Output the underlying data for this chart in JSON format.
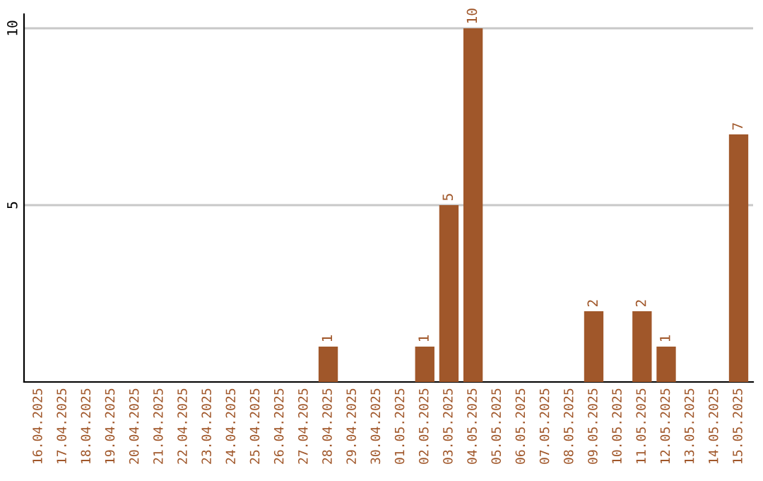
{
  "chart_data": {
    "type": "bar",
    "categories": [
      "16.04.2025",
      "17.04.2025",
      "18.04.2025",
      "19.04.2025",
      "20.04.2025",
      "21.04.2025",
      "22.04.2025",
      "23.04.2025",
      "24.04.2025",
      "25.04.2025",
      "26.04.2025",
      "27.04.2025",
      "28.04.2025",
      "29.04.2025",
      "30.04.2025",
      "01.05.2025",
      "02.05.2025",
      "03.05.2025",
      "04.05.2025",
      "05.05.2025",
      "06.05.2025",
      "07.05.2025",
      "08.05.2025",
      "09.05.2025",
      "10.05.2025",
      "11.05.2025",
      "12.05.2025",
      "13.05.2025",
      "14.05.2025",
      "15.05.2025"
    ],
    "values": [
      0,
      0,
      0,
      0,
      0,
      0,
      0,
      0,
      0,
      0,
      0,
      0,
      1,
      0,
      0,
      0,
      1,
      5,
      10,
      0,
      0,
      0,
      0,
      2,
      0,
      2,
      1,
      0,
      0,
      7
    ],
    "value_labels": [
      null,
      null,
      null,
      null,
      null,
      null,
      null,
      null,
      null,
      null,
      null,
      null,
      "1",
      null,
      null,
      null,
      "1",
      "5",
      "10",
      null,
      null,
      null,
      null,
      "2",
      null,
      "2",
      "1",
      null,
      null,
      "7"
    ],
    "color": "#a0572a",
    "ylim": [
      0,
      10.4
    ],
    "yticks": [
      5,
      10
    ],
    "grid": "y"
  }
}
